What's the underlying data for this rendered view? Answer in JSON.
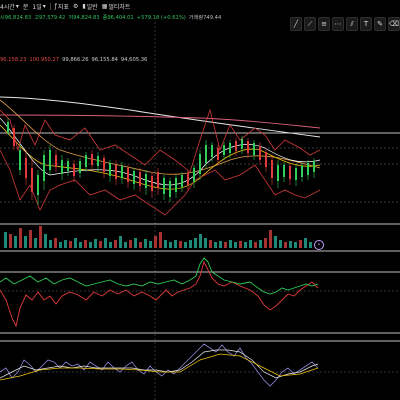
{
  "toolbar": {
    "items": [
      {
        "label": "4시간",
        "icon": "chevron-down-icon"
      },
      {
        "label": "분",
        "icon": ""
      },
      {
        "label": "1일",
        "icon": "chevron-down-icon"
      },
      {
        "label": "지표",
        "icon": "indicator-icon"
      },
      {
        "label": "",
        "icon": "settings-icon"
      },
      {
        "label": "일반",
        "icon": "candles-icon"
      },
      {
        "label": "멀티차트",
        "icon": "multi-chart-icon"
      }
    ]
  },
  "quote": {
    "open": "시96,824.83",
    "high": "고97,579.42",
    "low": "저94,824.83",
    "close": "종96,404.01",
    "change": "+579.18 (+0.61%)",
    "volume": "거래량749.44"
  },
  "ma_legend": {
    "values": [
      "96,158.23",
      "100,950.27",
      "99,866.26",
      "96,155.84",
      "94,605.36"
    ]
  },
  "colors": {
    "up": "#2fcf5a",
    "down": "#e23b3b",
    "volume_teal": "#1f8a78",
    "ma_yellow": "#f1c40f",
    "ma_pink": "#d9607a",
    "ma_white": "#e8e8e8",
    "ma_orange": "#e0a04a",
    "rsi_purple": "#8f86d8"
  }
}
